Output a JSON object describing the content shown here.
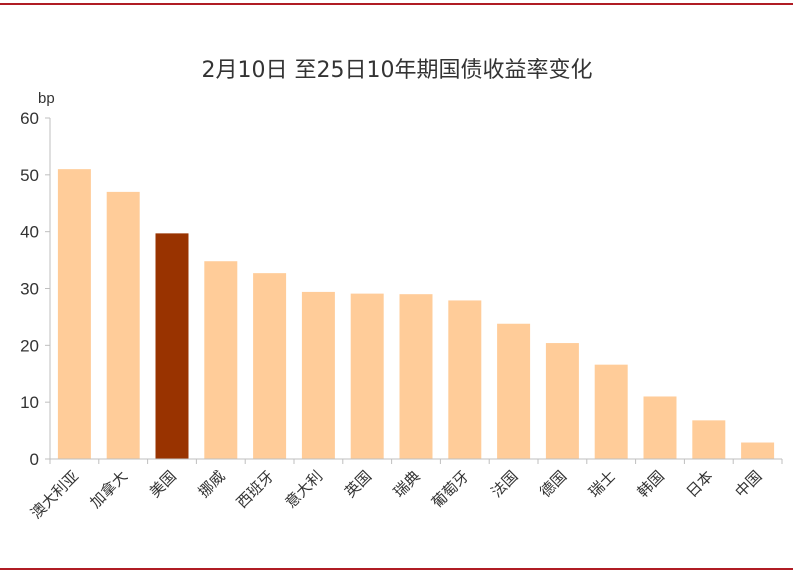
{
  "chart_data": {
    "type": "bar",
    "title": "2月10日 至25日10年期国债收益率变化",
    "ylabel": "bp",
    "xlabel": "",
    "ylim": [
      0,
      60
    ],
    "yticks": [
      0,
      10,
      20,
      30,
      40,
      50,
      60
    ],
    "grid": false,
    "categories": [
      "澳大利亚",
      "加拿大",
      "美国",
      "挪威",
      "西班牙",
      "意大利",
      "英国",
      "瑞典",
      "葡萄牙",
      "法国",
      "德国",
      "瑞士",
      "韩国",
      "日本",
      "中国"
    ],
    "values": [
      51,
      47,
      39.7,
      34.8,
      32.7,
      29.4,
      29.1,
      29,
      27.9,
      23.8,
      20.4,
      16.6,
      11,
      6.8,
      2.9
    ],
    "bar_color": "#ffcc99",
    "highlight_color": "#993300",
    "highlight_category": "美国"
  }
}
